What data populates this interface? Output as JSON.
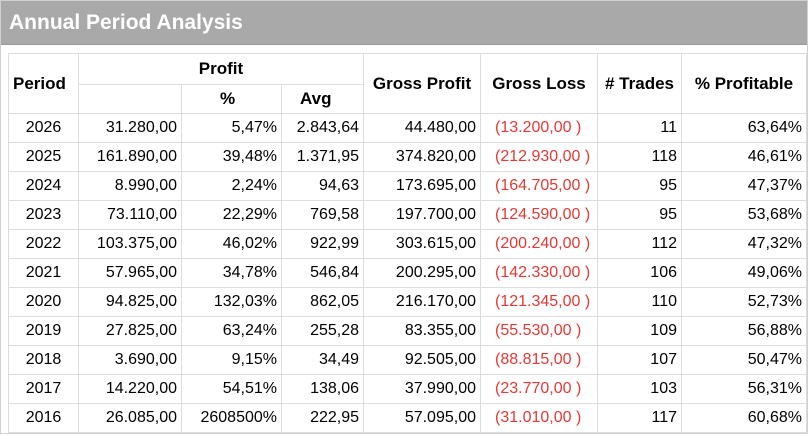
{
  "title": "Annual Period Analysis",
  "colors": {
    "title_bg": "#a9a9a9",
    "loss": "#e53935"
  },
  "headers": {
    "period": "Period",
    "profit": "Profit",
    "pct": "%",
    "avg": "Avg",
    "gross_profit": "Gross Profit",
    "gross_loss": "Gross Loss",
    "trades": "# Trades",
    "profitable": "% Profitable"
  },
  "rows": [
    {
      "period": "2026",
      "profit": "31.280,00",
      "pct": "5,47%",
      "avg": "2.843,64",
      "gross_profit": "44.480,00",
      "gross_loss": "(13.200,00 )",
      "trades": "11",
      "profitable": "63,64%"
    },
    {
      "period": "2025",
      "profit": "161.890,00",
      "pct": "39,48%",
      "avg": "1.371,95",
      "gross_profit": "374.820,00",
      "gross_loss": "(212.930,00 )",
      "trades": "118",
      "profitable": "46,61%"
    },
    {
      "period": "2024",
      "profit": "8.990,00",
      "pct": "2,24%",
      "avg": "94,63",
      "gross_profit": "173.695,00",
      "gross_loss": "(164.705,00 )",
      "trades": "95",
      "profitable": "47,37%"
    },
    {
      "period": "2023",
      "profit": "73.110,00",
      "pct": "22,29%",
      "avg": "769,58",
      "gross_profit": "197.700,00",
      "gross_loss": "(124.590,00 )",
      "trades": "95",
      "profitable": "53,68%"
    },
    {
      "period": "2022",
      "profit": "103.375,00",
      "pct": "46,02%",
      "avg": "922,99",
      "gross_profit": "303.615,00",
      "gross_loss": "(200.240,00 )",
      "trades": "112",
      "profitable": "47,32%"
    },
    {
      "period": "2021",
      "profit": "57.965,00",
      "pct": "34,78%",
      "avg": "546,84",
      "gross_profit": "200.295,00",
      "gross_loss": "(142.330,00 )",
      "trades": "106",
      "profitable": "49,06%"
    },
    {
      "period": "2020",
      "profit": "94.825,00",
      "pct": "132,03%",
      "avg": "862,05",
      "gross_profit": "216.170,00",
      "gross_loss": "(121.345,00 )",
      "trades": "110",
      "profitable": "52,73%"
    },
    {
      "period": "2019",
      "profit": "27.825,00",
      "pct": "63,24%",
      "avg": "255,28",
      "gross_profit": "83.355,00",
      "gross_loss": "(55.530,00 )",
      "trades": "109",
      "profitable": "56,88%"
    },
    {
      "period": "2018",
      "profit": "3.690,00",
      "pct": "9,15%",
      "avg": "34,49",
      "gross_profit": "92.505,00",
      "gross_loss": "(88.815,00 )",
      "trades": "107",
      "profitable": "50,47%"
    },
    {
      "period": "2017",
      "profit": "14.220,00",
      "pct": "54,51%",
      "avg": "138,06",
      "gross_profit": "37.990,00",
      "gross_loss": "(23.770,00 )",
      "trades": "103",
      "profitable": "56,31%"
    },
    {
      "period": "2016",
      "profit": "26.085,00",
      "pct": "2608500%",
      "avg": "222,95",
      "gross_profit": "57.095,00",
      "gross_loss": "(31.010,00 )",
      "trades": "117",
      "profitable": "60,68%"
    }
  ]
}
